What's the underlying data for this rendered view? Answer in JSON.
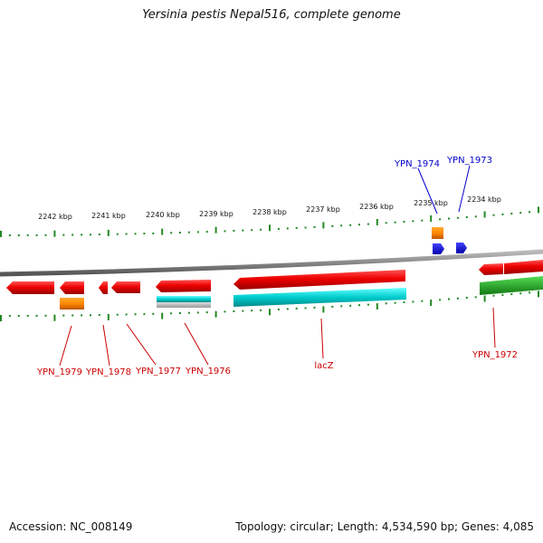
{
  "title": "Yersinia pestis Nepal516, complete genome",
  "footer": {
    "accession": "Accession: NC_008149",
    "info": "Topology: circular; Length: 4,534,590 bp; Genes: 4,085"
  },
  "ticks": [
    "2242 kbp",
    "2241 kbp",
    "2240 kbp",
    "2239 kbp",
    "2238 kbp",
    "2237 kbp",
    "2236 kbp",
    "2235 kbp",
    "2234 kbp"
  ],
  "genes": {
    "YPN_1979": "YPN_1979",
    "YPN_1978": "YPN_1978",
    "YPN_1977": "YPN_1977",
    "YPN_1976": "YPN_1976",
    "lacZ": "lacZ",
    "YPN_1972": "YPN_1972",
    "YPN_1974": "YPN_1974",
    "YPN_1973": "YPN_1973"
  },
  "colors": {
    "cds": "#ee0000",
    "rna": "#ff8800",
    "blast_cyan": "#00cccc",
    "blast_grey": "#aaaaaa",
    "green": "#22aa22",
    "blue": "#0000ee",
    "ticks": "#228822",
    "backbone": "#888888",
    "red_label": "#cc0000",
    "blue_label": "#0000cc"
  }
}
